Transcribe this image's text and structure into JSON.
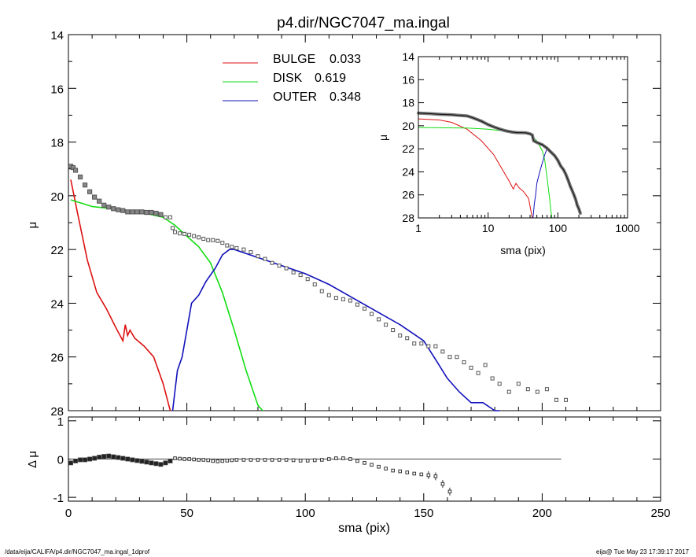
{
  "title": "p4.dir/NGC7047_ma.ingal",
  "footer": {
    "left": "/data/eija/CALIFA/p4.dir/NGC7047_ma.ingal_1dprof",
    "right": "eija@  Tue May 23 17:39:17 2017"
  },
  "colors": {
    "bulge": "#dd1111",
    "disk": "#11dd11",
    "outer": "#1111bb",
    "data": "#555555",
    "axis": "#000000"
  },
  "legend": [
    {
      "label": "BULGE",
      "value": "0.033",
      "color": "#dd1111"
    },
    {
      "label": "DISK",
      "value": "0.619",
      "color": "#11dd11"
    },
    {
      "label": "OUTER",
      "value": "0.348",
      "color": "#1111bb"
    }
  ],
  "chart_data": [
    {
      "id": "main",
      "type": "line",
      "xlabel": "sma (pix)",
      "ylabel": "μ",
      "xlim": [
        0,
        250
      ],
      "ylim": [
        28,
        14
      ],
      "y_inverted": true,
      "x_ticks": [
        "0",
        "50",
        "100",
        "150",
        "200",
        "250"
      ],
      "y_ticks": [
        "14",
        "16",
        "18",
        "20",
        "22",
        "24",
        "26",
        "28"
      ],
      "series": [
        {
          "name": "BULGE",
          "x": [
            1,
            4,
            8,
            12,
            16,
            20,
            23,
            24,
            25,
            26,
            28,
            32,
            36,
            40,
            43
          ],
          "y": [
            19.4,
            20.7,
            22.4,
            23.6,
            24.2,
            24.9,
            25.4,
            24.8,
            25.2,
            25.0,
            25.3,
            25.6,
            26.0,
            27.0,
            28.0
          ]
        },
        {
          "name": "DISK",
          "x": [
            1,
            10,
            20,
            30,
            40,
            45,
            50,
            55,
            60,
            65,
            70,
            75,
            80,
            82
          ],
          "y": [
            20.15,
            20.4,
            20.5,
            20.6,
            20.8,
            21.1,
            21.5,
            21.9,
            22.5,
            23.6,
            25.0,
            26.5,
            27.8,
            28.0
          ]
        },
        {
          "name": "OUTER",
          "x": [
            44,
            46,
            48,
            50,
            52,
            55,
            58,
            62,
            65,
            68,
            70,
            80,
            90,
            100,
            110,
            120,
            130,
            140,
            150,
            155,
            160,
            165,
            170,
            175,
            180,
            182
          ],
          "y": [
            28.0,
            26.5,
            26.0,
            25.0,
            24.0,
            23.7,
            23.2,
            22.7,
            22.2,
            22.0,
            22.0,
            22.3,
            22.6,
            22.9,
            23.3,
            23.8,
            24.3,
            24.8,
            25.4,
            26.1,
            26.8,
            27.3,
            27.7,
            27.7,
            28.0,
            28.0
          ]
        },
        {
          "name": "data",
          "x": [
            1,
            2,
            3,
            5,
            7,
            9,
            11,
            13,
            15,
            17,
            19,
            21,
            23,
            25,
            27,
            29,
            31,
            33,
            35,
            37,
            39,
            41,
            43,
            44,
            45,
            47,
            49,
            51,
            53,
            55,
            57,
            59,
            61,
            63,
            65,
            67,
            69,
            71,
            74,
            77,
            80,
            83,
            86,
            89,
            92,
            95,
            98,
            101,
            104,
            107,
            110,
            113,
            116,
            119,
            122,
            125,
            128,
            131,
            134,
            137,
            140,
            143,
            146,
            149,
            152,
            155,
            158,
            161,
            164,
            167,
            170,
            173,
            176,
            179,
            182,
            186,
            190,
            194,
            198,
            202,
            206,
            210
          ],
          "y": [
            18.9,
            18.95,
            19.05,
            19.3,
            19.6,
            19.85,
            20.05,
            20.2,
            20.35,
            20.42,
            20.48,
            20.52,
            20.55,
            20.6,
            20.6,
            20.6,
            20.6,
            20.62,
            20.62,
            20.65,
            20.7,
            20.8,
            20.8,
            21.2,
            21.35,
            21.4,
            21.42,
            21.45,
            21.5,
            21.55,
            21.6,
            21.65,
            21.65,
            21.68,
            21.75,
            21.85,
            21.9,
            21.95,
            22.0,
            22.1,
            22.25,
            22.35,
            22.5,
            22.6,
            22.7,
            22.85,
            22.95,
            23.1,
            23.3,
            23.55,
            23.7,
            23.8,
            23.85,
            23.9,
            24.05,
            24.2,
            24.4,
            24.6,
            24.8,
            25.0,
            25.2,
            25.3,
            25.5,
            25.5,
            25.6,
            25.6,
            25.8,
            26.0,
            26.0,
            26.2,
            26.4,
            26.6,
            26.3,
            26.8,
            27.0,
            27.3,
            27.0,
            27.2,
            27.3,
            27.2,
            27.6,
            27.6
          ]
        }
      ]
    },
    {
      "id": "residual",
      "type": "scatter",
      "xlabel": "sma (pix)",
      "ylabel": "Δ μ",
      "xlim": [
        0,
        250
      ],
      "ylim": [
        -1.1,
        1.1
      ],
      "y_ticks": [
        "1",
        "0",
        "-1"
      ],
      "x": [
        1,
        3,
        5,
        7,
        9,
        11,
        13,
        15,
        17,
        19,
        21,
        23,
        25,
        27,
        29,
        31,
        33,
        35,
        37,
        39,
        41,
        43,
        45,
        47,
        49,
        51,
        53,
        55,
        57,
        59,
        61,
        63,
        65,
        67,
        69,
        71,
        74,
        77,
        80,
        83,
        86,
        89,
        92,
        95,
        98,
        101,
        104,
        107,
        110,
        113,
        116,
        119,
        122,
        125,
        128,
        131,
        134,
        137,
        140,
        143,
        146,
        149,
        152,
        155,
        158,
        161
      ],
      "y": [
        -0.1,
        -0.05,
        -0.02,
        -0.02,
        0.0,
        0.02,
        0.05,
        0.07,
        0.08,
        0.06,
        0.04,
        0.02,
        0.0,
        -0.02,
        -0.04,
        -0.06,
        -0.08,
        -0.1,
        -0.12,
        -0.14,
        -0.1,
        -0.05,
        0.02,
        0.01,
        0.0,
        0.0,
        -0.01,
        -0.02,
        -0.02,
        -0.03,
        -0.05,
        -0.06,
        -0.05,
        -0.04,
        -0.03,
        -0.02,
        -0.02,
        -0.02,
        -0.02,
        -0.02,
        -0.02,
        -0.02,
        -0.02,
        -0.03,
        -0.04,
        -0.04,
        -0.03,
        -0.02,
        0.0,
        0.02,
        0.02,
        0.0,
        -0.05,
        -0.1,
        -0.15,
        -0.2,
        -0.25,
        -0.3,
        -0.32,
        -0.35,
        -0.38,
        -0.4,
        -0.42,
        -0.45,
        -0.65,
        -0.85
      ]
    },
    {
      "id": "inset",
      "type": "line",
      "xlabel": "sma (pix)",
      "ylabel": "μ",
      "x_scale": "log",
      "xlim": [
        1,
        1000
      ],
      "ylim": [
        28,
        14
      ],
      "y_inverted": true,
      "x_ticks": [
        "1",
        "10",
        "100",
        "1000"
      ],
      "y_ticks": [
        "14",
        "16",
        "18",
        "20",
        "22",
        "24",
        "26",
        "28"
      ],
      "series": [
        {
          "name": "BULGE",
          "x": [
            1,
            2,
            3,
            5,
            8,
            12,
            16,
            20,
            23,
            25,
            28,
            32,
            38,
            43
          ],
          "y": [
            19.4,
            19.5,
            19.7,
            20.3,
            21.3,
            22.5,
            23.8,
            24.8,
            25.5,
            25.0,
            25.4,
            25.7,
            26.3,
            28.0
          ]
        },
        {
          "name": "DISK",
          "x": [
            1,
            5,
            10,
            20,
            30,
            40,
            50,
            60,
            65,
            70,
            75,
            80,
            82
          ],
          "y": [
            20.15,
            20.2,
            20.3,
            20.5,
            20.6,
            20.8,
            21.3,
            22.2,
            23.0,
            24.5,
            26.0,
            27.5,
            28.0
          ]
        },
        {
          "name": "OUTER",
          "x": [
            44,
            46,
            48,
            50,
            55,
            60,
            65,
            70
          ],
          "y": [
            28.0,
            26.8,
            26.0,
            25.0,
            24.0,
            23.2,
            22.5,
            22.0
          ]
        },
        {
          "name": "data",
          "x": [
            1,
            1.5,
            2,
            3,
            4,
            5,
            6,
            8,
            10,
            12,
            15,
            18,
            22,
            26,
            30,
            35,
            40,
            43,
            45,
            50,
            55,
            60,
            65,
            70,
            80,
            90,
            100,
            110,
            120,
            130,
            140,
            150,
            160,
            170,
            180,
            190,
            200,
            210
          ],
          "y": [
            18.9,
            18.95,
            19.0,
            19.05,
            19.1,
            19.15,
            19.3,
            19.6,
            19.9,
            20.1,
            20.3,
            20.45,
            20.55,
            20.6,
            20.6,
            20.62,
            20.7,
            20.8,
            21.3,
            21.45,
            21.55,
            21.65,
            21.8,
            21.95,
            22.3,
            22.6,
            23.0,
            23.5,
            23.8,
            24.2,
            24.7,
            25.2,
            25.6,
            26.0,
            26.4,
            26.9,
            27.2,
            27.6
          ]
        }
      ]
    }
  ]
}
